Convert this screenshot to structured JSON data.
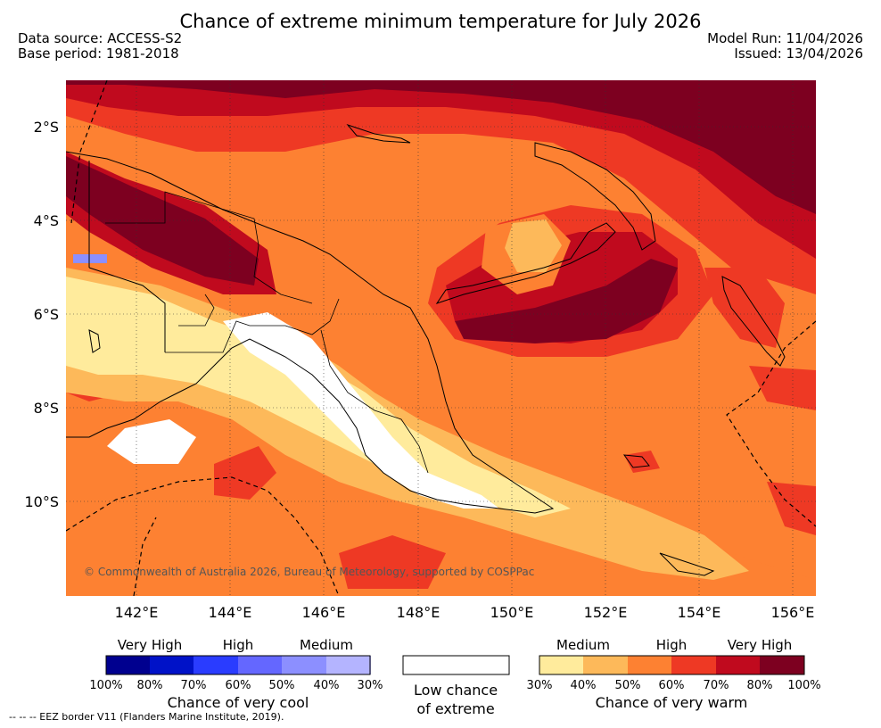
{
  "header": {
    "title": "Chance of extreme minimum temperature for July 2026",
    "data_source": "Data source: ACCESS-S2",
    "base_period": "Base period: 1981-2018",
    "model_run": "Model Run: 11/04/2026",
    "issued": "Issued: 13/04/2026"
  },
  "map": {
    "lat_labels": [
      "2°S",
      "4°S",
      "6°S",
      "8°S",
      "10°S"
    ],
    "lon_labels": [
      "142°E",
      "144°E",
      "146°E",
      "148°E",
      "150°E",
      "152°E",
      "154°E",
      "156°E"
    ],
    "copyright": "© Commonwealth of Australia 2026, Bureau of Meteorology, supported by COSPPac"
  },
  "legend": {
    "cool": {
      "headings": [
        "Very High",
        "High",
        "Medium"
      ],
      "ticks": [
        "100%",
        "80%",
        "70%",
        "60%",
        "50%",
        "40%",
        "30%"
      ],
      "colors": [
        "#00008f",
        "#0012c8",
        "#2a3cff",
        "#6467ff",
        "#8c8fff",
        "#b4b4ff"
      ],
      "caption": "Chance of very cool"
    },
    "neutral": {
      "caption_line1": "Low chance",
      "caption_line2": "of extreme",
      "color": "#ffffff"
    },
    "warm": {
      "headings": [
        "Medium",
        "High",
        "Very High"
      ],
      "ticks": [
        "30%",
        "40%",
        "50%",
        "60%",
        "70%",
        "80%",
        "100%"
      ],
      "colors": [
        "#ffeb9c",
        "#fdb95a",
        "#fd8132",
        "#ee3924",
        "#c00a1e",
        "#7d0020"
      ],
      "caption": "Chance of very warm"
    }
  },
  "footnote": "-- -- -- EEZ border V11 (Flanders Marine Institute, 2019)."
}
